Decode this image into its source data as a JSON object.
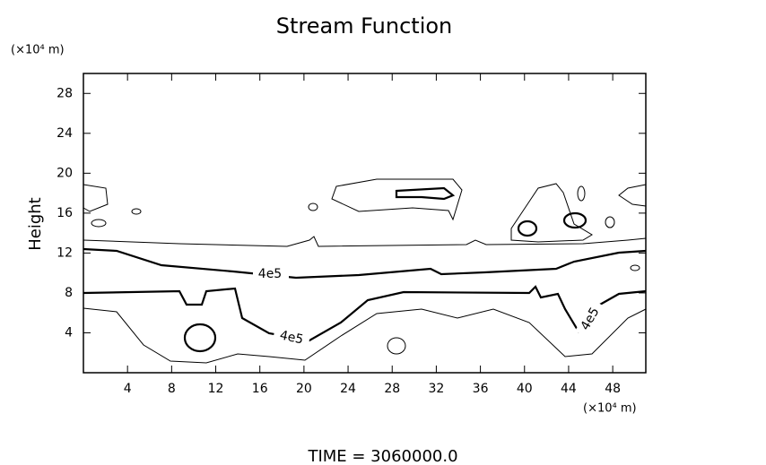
{
  "chart_data": {
    "type": "contour",
    "title": "Stream Function",
    "x_unit": "(×10⁴ m)",
    "y_unit": "(×10⁴ m)",
    "ylabel": "Height",
    "footer": "TIME = 3060000.0",
    "xlim": [
      0,
      51
    ],
    "ylim": [
      0,
      30
    ],
    "xticks": [
      4,
      8,
      12,
      16,
      20,
      24,
      28,
      32,
      36,
      40,
      44,
      48
    ],
    "yticks": [
      4,
      8,
      12,
      16,
      20,
      24,
      28
    ],
    "contour_labels": [
      "4e5",
      "4e5",
      "4e5"
    ]
  }
}
